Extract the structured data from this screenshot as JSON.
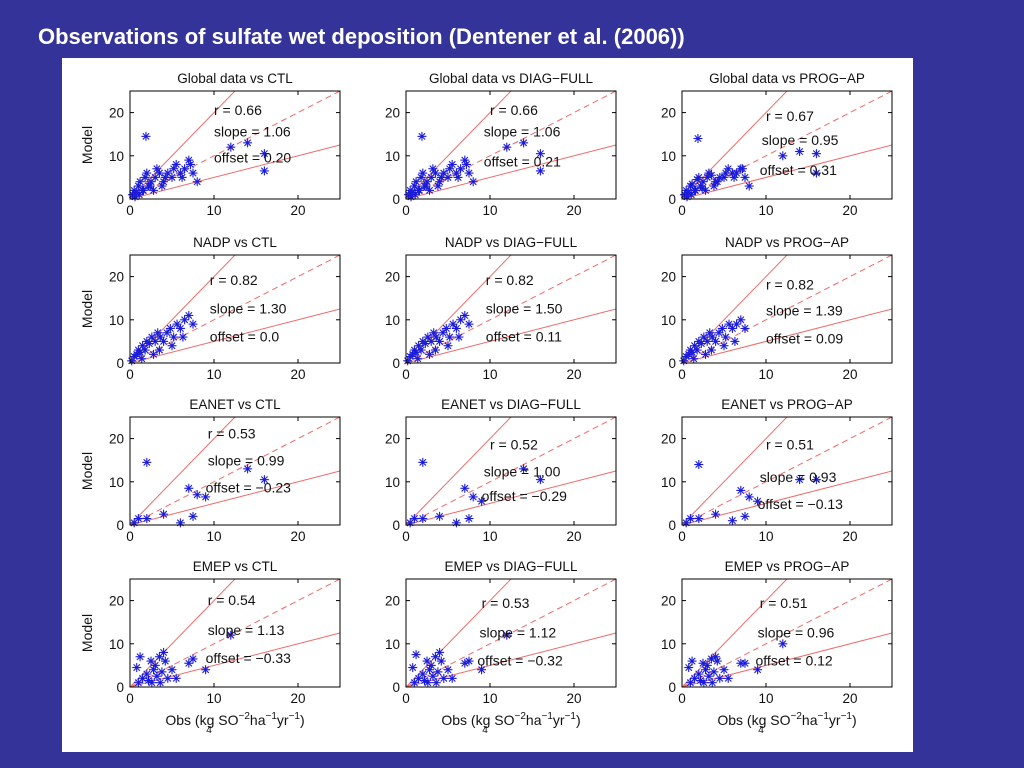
{
  "slide": {
    "title": "Observations of sulfate wet deposition (Dentener et al. (2006))"
  },
  "colors": {
    "background": "#333399",
    "panel": "#ffffff",
    "points": "#1a1ad8",
    "fit_lines": "#ee6a6a"
  },
  "axis_text": {
    "ylabel": "Model",
    "xlabel_prefix": "Obs (kg SO",
    "xlabel_sub": "4",
    "xlabel_sup": "−2",
    "xlabel_mid": "ha",
    "xlabel_sup2": "−1",
    "xlabel_mid2": "yr",
    "xlabel_sup3": "−1",
    "xlabel_suffix": ")"
  },
  "chart_data": [
    {
      "type": "scatter",
      "title": "Global data vs CTL",
      "xlim": [
        0,
        25
      ],
      "ylim": [
        0,
        25
      ],
      "xticks": [
        0,
        10,
        20
      ],
      "yticks": [
        0,
        10,
        20
      ],
      "r_label": "r = 0.66",
      "slope_label": "slope = 1.06",
      "offset_label": "offset = 0.20",
      "x": [
        0.3,
        0.5,
        0.8,
        1,
        1.2,
        1.5,
        1.8,
        2,
        2.2,
        2.5,
        3,
        3.2,
        3.5,
        4,
        4.5,
        5,
        5.5,
        6,
        6.5,
        7,
        7.5,
        8,
        0.6,
        1.1,
        1.6,
        2.4,
        2.8,
        3.8,
        4.2,
        5.2,
        6.2,
        7.2,
        1.9,
        12,
        14,
        16,
        16
      ],
      "y": [
        1,
        2,
        1.5,
        3,
        4,
        2,
        5,
        6,
        3,
        4,
        5,
        7,
        6,
        4,
        6,
        5,
        8,
        6,
        7,
        9,
        6,
        4,
        0.5,
        1,
        2,
        3,
        2,
        3,
        5,
        7,
        5,
        8,
        14.5,
        12,
        13,
        10.5,
        6.5
      ]
    },
    {
      "type": "scatter",
      "title": "Global data vs DIAG−FULL",
      "xlim": [
        0,
        25
      ],
      "ylim": [
        0,
        25
      ],
      "xticks": [
        0,
        10,
        20
      ],
      "yticks": [
        0,
        10,
        20
      ],
      "r_label": "r = 0.66",
      "slope_label": "slope = 1.06",
      "offset_label": "offset = 0.21",
      "x": [
        0.3,
        0.5,
        0.8,
        1,
        1.2,
        1.5,
        1.8,
        2,
        2.2,
        2.5,
        3,
        3.2,
        3.5,
        4,
        4.5,
        5,
        5.5,
        6,
        6.5,
        7,
        7.5,
        8,
        0.6,
        1.1,
        1.6,
        2.4,
        2.8,
        3.8,
        4.2,
        5.2,
        6.2,
        7.2,
        1.9,
        12,
        14,
        16,
        16
      ],
      "y": [
        1,
        2,
        1.5,
        3,
        4,
        2,
        5,
        6,
        3,
        4,
        5,
        7,
        6,
        4,
        6,
        5,
        8,
        6,
        7,
        9,
        6,
        4,
        0.5,
        1,
        2,
        3,
        2,
        3,
        5,
        7,
        5,
        8,
        14.5,
        12,
        13,
        10.5,
        6.5
      ]
    },
    {
      "type": "scatter",
      "title": "Global data vs PROG−AP",
      "xlim": [
        0,
        25
      ],
      "ylim": [
        0,
        25
      ],
      "xticks": [
        0,
        10,
        20
      ],
      "yticks": [
        0,
        10,
        20
      ],
      "r_label": "r = 0.67",
      "slope_label": "slope = 0.95",
      "offset_label": "offset = 0.31",
      "x": [
        0.3,
        0.5,
        0.8,
        1,
        1.2,
        1.5,
        1.8,
        2,
        2.2,
        2.5,
        3,
        3.2,
        3.5,
        4,
        4.5,
        5,
        5.5,
        6,
        6.5,
        7,
        7.5,
        8,
        0.6,
        1.1,
        1.6,
        2.4,
        2.8,
        3.8,
        4.2,
        5.2,
        6.2,
        7.2,
        1.9,
        12,
        14,
        16,
        16
      ],
      "y": [
        1,
        2,
        1.5,
        3,
        3.5,
        2,
        4.5,
        5,
        3,
        4,
        5,
        6,
        5.5,
        4,
        5,
        5,
        7,
        6,
        6,
        7,
        5,
        3,
        0.5,
        1,
        2,
        2.5,
        2,
        3,
        4,
        6,
        5,
        7,
        14,
        10,
        11,
        10.5,
        6
      ]
    },
    {
      "type": "scatter",
      "title": "NADP vs CTL",
      "xlim": [
        0,
        25
      ],
      "ylim": [
        0,
        25
      ],
      "xticks": [
        0,
        10,
        20
      ],
      "yticks": [
        0,
        10,
        20
      ],
      "r_label": "r = 0.82",
      "slope_label": "slope = 1.30",
      "offset_label": "offset = 0.0",
      "x": [
        0.2,
        0.5,
        0.8,
        1,
        1.2,
        1.5,
        1.8,
        2,
        2.3,
        2.6,
        3,
        3.3,
        3.6,
        4,
        4.4,
        4.8,
        5.2,
        5.6,
        6,
        6.5,
        7,
        7.5,
        1.4,
        2.8,
        3.5,
        5,
        6.3
      ],
      "y": [
        0.5,
        1.5,
        2,
        3,
        2.5,
        4,
        3,
        5,
        4.5,
        6,
        5,
        7,
        6,
        5,
        7,
        8,
        6,
        9,
        8,
        10,
        11,
        9,
        1,
        2,
        3,
        4,
        6
      ]
    },
    {
      "type": "scatter",
      "title": "NADP vs DIAG−FULL",
      "xlim": [
        0,
        25
      ],
      "ylim": [
        0,
        25
      ],
      "xticks": [
        0,
        10,
        20
      ],
      "yticks": [
        0,
        10,
        20
      ],
      "r_label": "r = 0.82",
      "slope_label": "slope = 1.50",
      "offset_label": "offset = 0.11",
      "x": [
        0.2,
        0.5,
        0.8,
        1,
        1.2,
        1.5,
        1.8,
        2,
        2.3,
        2.6,
        3,
        3.3,
        3.6,
        4,
        4.4,
        4.8,
        5.2,
        5.6,
        6,
        6.5,
        7,
        7.5,
        1.4,
        2.8,
        3.5,
        5,
        6.3
      ],
      "y": [
        0.5,
        1.5,
        2,
        3,
        2.5,
        4,
        3,
        5,
        4.5,
        6,
        5,
        7,
        6,
        5,
        7,
        8,
        6,
        9,
        8,
        10,
        11,
        9,
        1,
        2,
        3,
        4,
        6
      ]
    },
    {
      "type": "scatter",
      "title": "NADP vs PROG−AP",
      "xlim": [
        0,
        25
      ],
      "ylim": [
        0,
        25
      ],
      "xticks": [
        0,
        10,
        20
      ],
      "yticks": [
        0,
        10,
        20
      ],
      "r_label": "r = 0.82",
      "slope_label": "slope = 1.39",
      "offset_label": "offset = 0.09",
      "x": [
        0.2,
        0.5,
        0.8,
        1,
        1.2,
        1.5,
        1.8,
        2,
        2.3,
        2.6,
        3,
        3.3,
        3.6,
        4,
        4.4,
        4.8,
        5.2,
        5.6,
        6,
        6.5,
        7,
        7.5,
        1.4,
        2.8,
        3.5,
        5,
        6.3
      ],
      "y": [
        0.5,
        1.5,
        2,
        3,
        2.5,
        4,
        3,
        5,
        4.5,
        6,
        5,
        7,
        6,
        5,
        7,
        8,
        6,
        9,
        8,
        9,
        10,
        8,
        1,
        2,
        3,
        4,
        5
      ]
    },
    {
      "type": "scatter",
      "title": "EANET vs CTL",
      "xlim": [
        0,
        25
      ],
      "ylim": [
        0,
        25
      ],
      "xticks": [
        0,
        10,
        20
      ],
      "yticks": [
        0,
        10,
        20
      ],
      "r_label": "r = 0.53",
      "slope_label": "slope = 0.99",
      "offset_label": "offset = −0.23",
      "x": [
        0.5,
        1,
        2,
        4,
        6,
        7,
        7.5,
        8,
        9,
        14,
        16,
        2
      ],
      "y": [
        0.5,
        1.5,
        1.5,
        2.5,
        0.5,
        8.5,
        2,
        7,
        6.5,
        13,
        10.5,
        14.5
      ]
    },
    {
      "type": "scatter",
      "title": "EANET vs DIAG−FULL",
      "xlim": [
        0,
        25
      ],
      "ylim": [
        0,
        25
      ],
      "xticks": [
        0,
        10,
        20
      ],
      "yticks": [
        0,
        10,
        20
      ],
      "r_label": "r = 0.52",
      "slope_label": "slope = 1.00",
      "offset_label": "offset = −0.29",
      "x": [
        0.5,
        1,
        2,
        4,
        6,
        7,
        7.5,
        8,
        9,
        14,
        16,
        2
      ],
      "y": [
        0.5,
        1.5,
        1.5,
        2,
        0.5,
        8.5,
        1.5,
        6.5,
        5.5,
        13,
        10.5,
        14.5
      ]
    },
    {
      "type": "scatter",
      "title": "EANET vs PROG−AP",
      "xlim": [
        0,
        25
      ],
      "ylim": [
        0,
        25
      ],
      "xticks": [
        0,
        10,
        20
      ],
      "yticks": [
        0,
        10,
        20
      ],
      "r_label": "r = 0.51",
      "slope_label": "slope = 0.93",
      "offset_label": "offset = −0.13",
      "x": [
        0.5,
        1,
        2,
        4,
        6,
        7,
        7.5,
        8,
        9,
        14,
        16,
        2
      ],
      "y": [
        0.5,
        1.5,
        1.5,
        2.5,
        1,
        8,
        2,
        6.5,
        5.5,
        10.5,
        10.5,
        14
      ]
    },
    {
      "type": "scatter",
      "title": "EMEP vs CTL",
      "xlim": [
        0,
        25
      ],
      "ylim": [
        0,
        25
      ],
      "xticks": [
        0,
        10,
        20
      ],
      "yticks": [
        0,
        10,
        20
      ],
      "r_label": "r = 0.54",
      "slope_label": "slope = 1.13",
      "offset_label": "offset = −0.33",
      "x": [
        0.8,
        1.2,
        1.5,
        2,
        2.2,
        2.5,
        2.8,
        3,
        3.2,
        3.5,
        3.8,
        4,
        4.2,
        4.5,
        5,
        5.5,
        7,
        7.5,
        9,
        12,
        1,
        2.6,
        3.6
      ],
      "y": [
        4.5,
        7,
        2,
        3,
        1.5,
        6,
        4,
        5,
        2.5,
        7,
        3.5,
        8,
        6,
        2,
        4,
        2,
        5.5,
        6.5,
        4,
        12,
        1,
        1,
        1
      ]
    },
    {
      "type": "scatter",
      "title": "EMEP vs DIAG−FULL",
      "xlim": [
        0,
        25
      ],
      "ylim": [
        0,
        25
      ],
      "xticks": [
        0,
        10,
        20
      ],
      "yticks": [
        0,
        10,
        20
      ],
      "r_label": "r = 0.53",
      "slope_label": "slope = 1.12",
      "offset_label": "offset = −0.32",
      "x": [
        0.8,
        1.2,
        1.5,
        2,
        2.2,
        2.5,
        2.8,
        3,
        3.2,
        3.5,
        3.8,
        4,
        4.2,
        4.5,
        5,
        5.5,
        7,
        7.5,
        9,
        12,
        1,
        2.6,
        3.6
      ],
      "y": [
        4.5,
        7.5,
        2,
        3,
        1.5,
        6,
        4,
        5,
        2.5,
        7,
        3.5,
        8,
        6,
        2,
        4,
        2,
        5.5,
        6,
        4,
        12,
        1,
        1,
        1
      ]
    },
    {
      "type": "scatter",
      "title": "EMEP vs PROG−AP",
      "xlim": [
        0,
        25
      ],
      "ylim": [
        0,
        25
      ],
      "xticks": [
        0,
        10,
        20
      ],
      "yticks": [
        0,
        10,
        20
      ],
      "r_label": "r = 0.51",
      "slope_label": "slope = 0.96",
      "offset_label": "offset = 0.12",
      "x": [
        0.8,
        1.2,
        1.5,
        2,
        2.2,
        2.5,
        2.8,
        3,
        3.2,
        3.5,
        3.8,
        4,
        4.2,
        4.5,
        5,
        5.5,
        7,
        7.5,
        9,
        12,
        1,
        2.6,
        3.6
      ],
      "y": [
        4.5,
        6,
        2,
        3,
        1.5,
        5.5,
        4,
        5,
        2.5,
        6.5,
        3.5,
        7,
        6,
        2,
        4,
        2,
        5.5,
        5.5,
        4,
        10,
        1,
        1,
        1
      ]
    }
  ]
}
